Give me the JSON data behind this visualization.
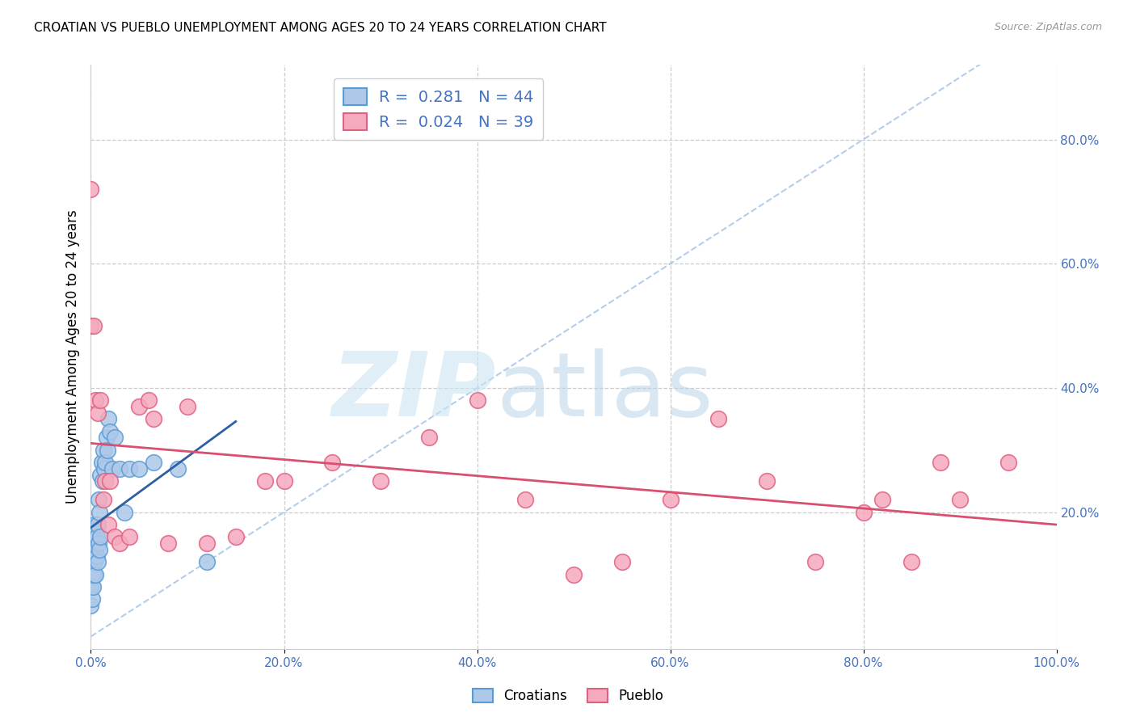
{
  "title": "CROATIAN VS PUEBLO UNEMPLOYMENT AMONG AGES 20 TO 24 YEARS CORRELATION CHART",
  "source": "Source: ZipAtlas.com",
  "ylabel": "Unemployment Among Ages 20 to 24 years",
  "xlim": [
    0,
    1.0
  ],
  "ylim": [
    -0.02,
    0.92
  ],
  "xticks": [
    0.0,
    0.2,
    0.4,
    0.6,
    0.8,
    1.0
  ],
  "yticks_left": [],
  "ytick_vals": [
    0.2,
    0.4,
    0.6,
    0.8
  ],
  "ytick_labels": [
    "20.0%",
    "40.0%",
    "60.0%",
    "80.0%"
  ],
  "xticklabels": [
    "0.0%",
    "20.0%",
    "40.0%",
    "60.0%",
    "80.0%",
    "100.0%"
  ],
  "croatian_R": 0.281,
  "croatian_N": 44,
  "pueblo_R": 0.024,
  "pueblo_N": 39,
  "croatian_color": "#adc8e8",
  "pueblo_color": "#f5aabe",
  "croatian_edge": "#5b9bd5",
  "pueblo_edge": "#e06080",
  "trend_blue_color": "#2e5fa3",
  "trend_pink_color": "#d94f70",
  "diagonal_color": "#adc8e8",
  "legend_label_1": "Croatians",
  "legend_label_2": "Pueblo",
  "croatian_x": [
    0.0,
    0.0,
    0.001,
    0.001,
    0.001,
    0.002,
    0.002,
    0.002,
    0.003,
    0.003,
    0.003,
    0.004,
    0.004,
    0.005,
    0.005,
    0.005,
    0.006,
    0.006,
    0.007,
    0.007,
    0.008,
    0.008,
    0.009,
    0.009,
    0.01,
    0.01,
    0.011,
    0.012,
    0.013,
    0.014,
    0.015,
    0.016,
    0.017,
    0.018,
    0.02,
    0.022,
    0.025,
    0.03,
    0.035,
    0.04,
    0.05,
    0.065,
    0.09,
    0.12
  ],
  "croatian_y": [
    0.05,
    0.08,
    0.06,
    0.1,
    0.14,
    0.08,
    0.12,
    0.15,
    0.1,
    0.13,
    0.16,
    0.12,
    0.18,
    0.1,
    0.14,
    0.17,
    0.13,
    0.16,
    0.12,
    0.18,
    0.15,
    0.22,
    0.14,
    0.2,
    0.16,
    0.26,
    0.28,
    0.25,
    0.3,
    0.27,
    0.28,
    0.32,
    0.3,
    0.35,
    0.33,
    0.27,
    0.32,
    0.27,
    0.2,
    0.27,
    0.27,
    0.28,
    0.27,
    0.12
  ],
  "pueblo_x": [
    0.0,
    0.0,
    0.003,
    0.005,
    0.007,
    0.01,
    0.013,
    0.015,
    0.018,
    0.02,
    0.025,
    0.03,
    0.04,
    0.05,
    0.06,
    0.065,
    0.08,
    0.1,
    0.12,
    0.15,
    0.18,
    0.2,
    0.25,
    0.3,
    0.35,
    0.4,
    0.45,
    0.5,
    0.55,
    0.6,
    0.65,
    0.7,
    0.75,
    0.8,
    0.82,
    0.85,
    0.88,
    0.9,
    0.95
  ],
  "pueblo_y": [
    0.5,
    0.72,
    0.5,
    0.38,
    0.36,
    0.38,
    0.22,
    0.25,
    0.18,
    0.25,
    0.16,
    0.15,
    0.16,
    0.37,
    0.38,
    0.35,
    0.15,
    0.37,
    0.15,
    0.16,
    0.25,
    0.25,
    0.28,
    0.25,
    0.32,
    0.38,
    0.22,
    0.1,
    0.12,
    0.22,
    0.35,
    0.25,
    0.12,
    0.2,
    0.22,
    0.12,
    0.28,
    0.22,
    0.28
  ]
}
